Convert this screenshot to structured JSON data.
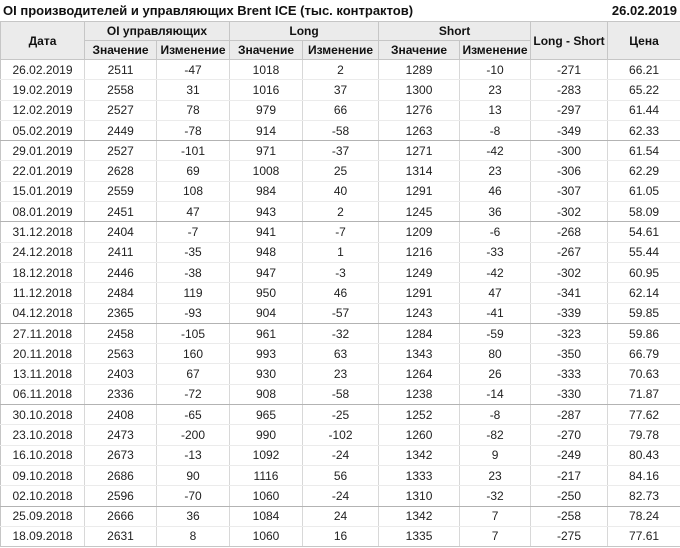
{
  "page": {
    "title": "OI производителей и управляющих Brent ICE (тыс. контрактов)",
    "report_date": "26.02.2019"
  },
  "colors": {
    "positive_change": "#2f9a2f",
    "negative_change": "#cc2222",
    "header_bg": "#ebebeb",
    "body_text": "#222222"
  },
  "chart_data": {
    "type": "table",
    "title": "OI производителей и управляющих Brent ICE (тыс. контрактов)",
    "report_date": "26.02.2019",
    "header": {
      "date": "Дата",
      "groups": [
        {
          "label": "OI управляющих"
        },
        {
          "label": "Long"
        },
        {
          "label": "Short"
        }
      ],
      "sub_value": "Значение",
      "sub_change": "Изменение",
      "long_short": "Long - Short",
      "price": "Цена"
    },
    "rows": [
      {
        "date": "26.02.2019",
        "oi_value": 2511,
        "oi_change": -47,
        "long_value": 1018,
        "long_change": 2,
        "short_value": 1289,
        "short_change": -10,
        "long_short": -271,
        "price": "66.21",
        "month_group_end": false
      },
      {
        "date": "19.02.2019",
        "oi_value": 2558,
        "oi_change": 31,
        "long_value": 1016,
        "long_change": 37,
        "short_value": 1300,
        "short_change": 23,
        "long_short": -283,
        "price": "65.22",
        "month_group_end": false
      },
      {
        "date": "12.02.2019",
        "oi_value": 2527,
        "oi_change": 78,
        "long_value": 979,
        "long_change": 66,
        "short_value": 1276,
        "short_change": 13,
        "long_short": -297,
        "price": "61.44",
        "month_group_end": false
      },
      {
        "date": "05.02.2019",
        "oi_value": 2449,
        "oi_change": -78,
        "long_value": 914,
        "long_change": -58,
        "short_value": 1263,
        "short_change": -8,
        "long_short": -349,
        "price": "62.33",
        "month_group_end": true
      },
      {
        "date": "29.01.2019",
        "oi_value": 2527,
        "oi_change": -101,
        "long_value": 971,
        "long_change": -37,
        "short_value": 1271,
        "short_change": -42,
        "long_short": -300,
        "price": "61.54",
        "month_group_end": false
      },
      {
        "date": "22.01.2019",
        "oi_value": 2628,
        "oi_change": 69,
        "long_value": 1008,
        "long_change": 25,
        "short_value": 1314,
        "short_change": 23,
        "long_short": -306,
        "price": "62.29",
        "month_group_end": false
      },
      {
        "date": "15.01.2019",
        "oi_value": 2559,
        "oi_change": 108,
        "long_value": 984,
        "long_change": 40,
        "short_value": 1291,
        "short_change": 46,
        "long_short": -307,
        "price": "61.05",
        "month_group_end": false
      },
      {
        "date": "08.01.2019",
        "oi_value": 2451,
        "oi_change": 47,
        "long_value": 943,
        "long_change": 2,
        "short_value": 1245,
        "short_change": 36,
        "long_short": -302,
        "price": "58.09",
        "month_group_end": true
      },
      {
        "date": "31.12.2018",
        "oi_value": 2404,
        "oi_change": -7,
        "long_value": 941,
        "long_change": -7,
        "short_value": 1209,
        "short_change": -6,
        "long_short": -268,
        "price": "54.61",
        "month_group_end": false
      },
      {
        "date": "24.12.2018",
        "oi_value": 2411,
        "oi_change": -35,
        "long_value": 948,
        "long_change": 1,
        "short_value": 1216,
        "short_change": -33,
        "long_short": -267,
        "price": "55.44",
        "month_group_end": false
      },
      {
        "date": "18.12.2018",
        "oi_value": 2446,
        "oi_change": -38,
        "long_value": 947,
        "long_change": -3,
        "short_value": 1249,
        "short_change": -42,
        "long_short": -302,
        "price": "60.95",
        "month_group_end": false
      },
      {
        "date": "11.12.2018",
        "oi_value": 2484,
        "oi_change": 119,
        "long_value": 950,
        "long_change": 46,
        "short_value": 1291,
        "short_change": 47,
        "long_short": -341,
        "price": "62.14",
        "month_group_end": false
      },
      {
        "date": "04.12.2018",
        "oi_value": 2365,
        "oi_change": -93,
        "long_value": 904,
        "long_change": -57,
        "short_value": 1243,
        "short_change": -41,
        "long_short": -339,
        "price": "59.85",
        "month_group_end": true
      },
      {
        "date": "27.11.2018",
        "oi_value": 2458,
        "oi_change": -105,
        "long_value": 961,
        "long_change": -32,
        "short_value": 1284,
        "short_change": -59,
        "long_short": -323,
        "price": "59.86",
        "month_group_end": false
      },
      {
        "date": "20.11.2018",
        "oi_value": 2563,
        "oi_change": 160,
        "long_value": 993,
        "long_change": 63,
        "short_value": 1343,
        "short_change": 80,
        "long_short": -350,
        "price": "66.79",
        "month_group_end": false
      },
      {
        "date": "13.11.2018",
        "oi_value": 2403,
        "oi_change": 67,
        "long_value": 930,
        "long_change": 23,
        "short_value": 1264,
        "short_change": 26,
        "long_short": -333,
        "price": "70.63",
        "month_group_end": false
      },
      {
        "date": "06.11.2018",
        "oi_value": 2336,
        "oi_change": -72,
        "long_value": 908,
        "long_change": -58,
        "short_value": 1238,
        "short_change": -14,
        "long_short": -330,
        "price": "71.87",
        "month_group_end": true
      },
      {
        "date": "30.10.2018",
        "oi_value": 2408,
        "oi_change": -65,
        "long_value": 965,
        "long_change": -25,
        "short_value": 1252,
        "short_change": -8,
        "long_short": -287,
        "price": "77.62",
        "month_group_end": false
      },
      {
        "date": "23.10.2018",
        "oi_value": 2473,
        "oi_change": -200,
        "long_value": 990,
        "long_change": -102,
        "short_value": 1260,
        "short_change": -82,
        "long_short": -270,
        "price": "79.78",
        "month_group_end": false
      },
      {
        "date": "16.10.2018",
        "oi_value": 2673,
        "oi_change": -13,
        "long_value": 1092,
        "long_change": -24,
        "short_value": 1342,
        "short_change": 9,
        "long_short": -249,
        "price": "80.43",
        "month_group_end": false
      },
      {
        "date": "09.10.2018",
        "oi_value": 2686,
        "oi_change": 90,
        "long_value": 1116,
        "long_change": 56,
        "short_value": 1333,
        "short_change": 23,
        "long_short": -217,
        "price": "84.16",
        "month_group_end": false
      },
      {
        "date": "02.10.2018",
        "oi_value": 2596,
        "oi_change": -70,
        "long_value": 1060,
        "long_change": -24,
        "short_value": 1310,
        "short_change": -32,
        "long_short": -250,
        "price": "82.73",
        "month_group_end": true
      },
      {
        "date": "25.09.2018",
        "oi_value": 2666,
        "oi_change": 36,
        "long_value": 1084,
        "long_change": 24,
        "short_value": 1342,
        "short_change": 7,
        "long_short": -258,
        "price": "78.24",
        "month_group_end": false
      },
      {
        "date": "18.09.2018",
        "oi_value": 2631,
        "oi_change": 8,
        "long_value": 1060,
        "long_change": 16,
        "short_value": 1335,
        "short_change": 7,
        "long_short": -275,
        "price": "77.61",
        "month_group_end": false
      }
    ]
  }
}
